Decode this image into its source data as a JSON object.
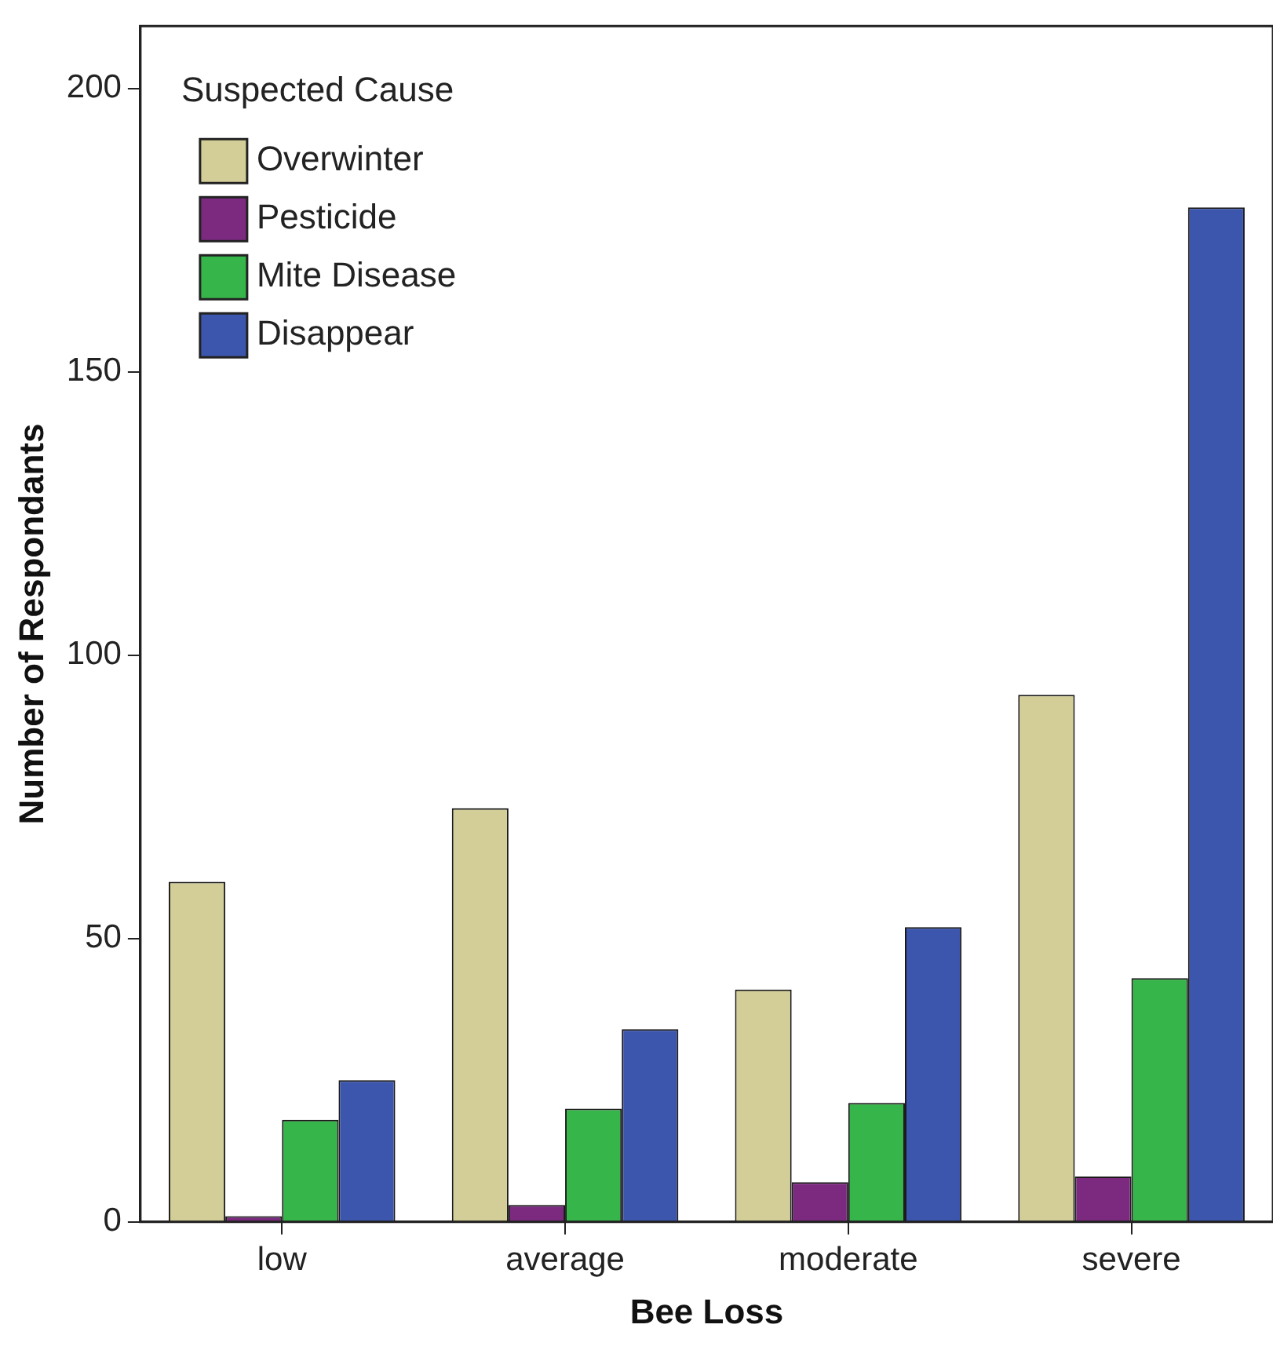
{
  "chart_data": {
    "type": "bar",
    "xlabel": "Bee Loss",
    "ylabel": "Number of Respondants",
    "legend_title": "Suspected Cause",
    "categories": [
      "low",
      "average",
      "moderate",
      "severe"
    ],
    "series": [
      {
        "name": "Overwinter",
        "color": "#d3ce97",
        "values": [
          60,
          73,
          41,
          93
        ]
      },
      {
        "name": "Pesticide",
        "color": "#7b2a80",
        "values": [
          1,
          3,
          7,
          8
        ]
      },
      {
        "name": "Mite Disease",
        "color": "#36b54a",
        "values": [
          18,
          20,
          21,
          43
        ]
      },
      {
        "name": "Disappear",
        "color": "#3d56ad",
        "values": [
          25,
          34,
          52,
          179
        ]
      }
    ],
    "ylim": [
      0,
      211
    ],
    "yticks": [
      0,
      50,
      100,
      150,
      200
    ],
    "grid": false,
    "legend": "top left"
  }
}
